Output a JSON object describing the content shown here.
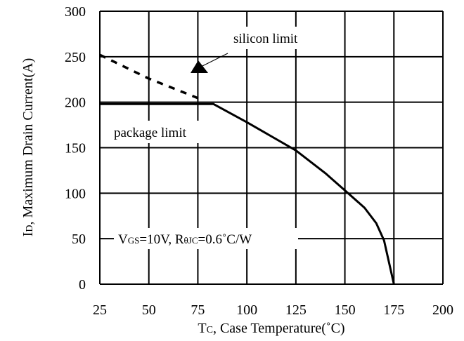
{
  "chart_data": {
    "type": "line",
    "xlabel": "T",
    "xlabel_sub": "C",
    "xlabel_rest": ", Case Temperature(˚C)",
    "ylabel": "I",
    "ylabel_sub": "D",
    "ylabel_rest": ", Maximum Drain Current(A)",
    "xlim": [
      25,
      200
    ],
    "ylim": [
      0,
      300
    ],
    "xticks": [
      25,
      50,
      75,
      100,
      125,
      150,
      175,
      200
    ],
    "yticks": [
      0,
      50,
      100,
      150,
      200,
      250,
      300
    ],
    "grid": true,
    "series": [
      {
        "name": "package limit",
        "style": "solid",
        "points": [
          [
            25,
            198
          ],
          [
            83,
            198
          ],
          [
            100,
            178
          ],
          [
            125,
            147
          ],
          [
            140,
            122
          ],
          [
            150,
            103
          ],
          [
            160,
            84
          ],
          [
            166,
            67
          ],
          [
            170,
            48
          ],
          [
            175,
            0
          ]
        ]
      },
      {
        "name": "silicon limit",
        "style": "dashed",
        "points": [
          [
            25,
            252
          ],
          [
            50,
            226
          ],
          [
            78,
            202
          ]
        ]
      }
    ],
    "annotations": {
      "silicon_limit": "silicon limit",
      "package_limit": "package limit",
      "cond_v": "V",
      "cond_v_sub": "GS",
      "cond_v_rest": "=10V, R",
      "cond_r_sub": "θJC",
      "cond_r_rest": "=0.6˚C/W"
    }
  }
}
